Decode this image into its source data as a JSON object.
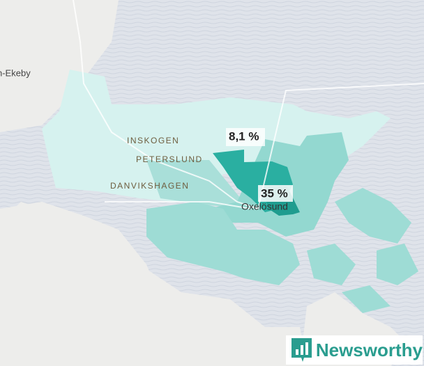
{
  "places": [
    "n-Ekeby",
    "INSKOGEN",
    "PETERSLUND",
    "DANVIKSHAGEN",
    "Oxelösund"
  ],
  "regions": [
    {
      "label": "8,1 %"
    },
    {
      "label": "35 %"
    }
  ],
  "logo": {
    "text": "Newsworthy"
  }
}
